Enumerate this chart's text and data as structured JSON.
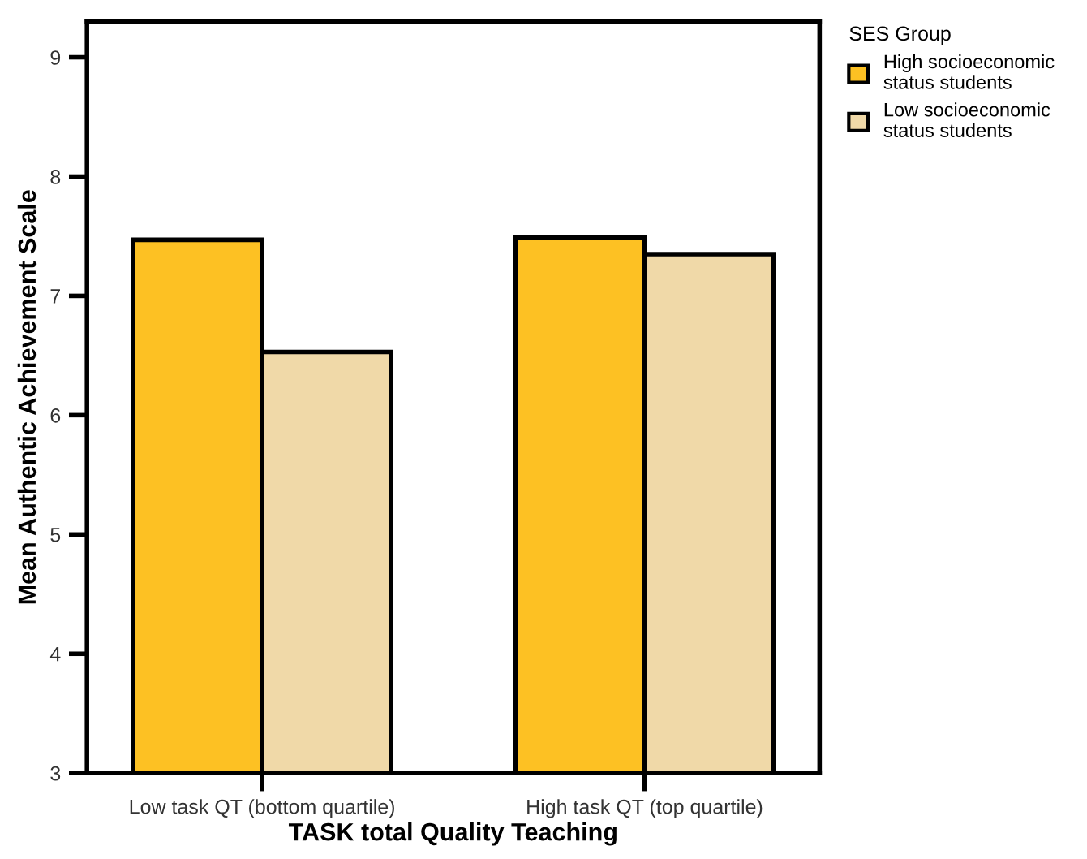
{
  "chart_data": {
    "type": "bar",
    "xlabel": "TASK total Quality Teaching",
    "ylabel": "Mean Authentic Achievement Scale",
    "legend_title": "SES Group",
    "legend": "top right",
    "categories": [
      "Low task QT (bottom quartile)",
      "High task QT (top quartile)"
    ],
    "series": [
      {
        "name": "High socioeconomic\nstatus students",
        "color": "#fdc123",
        "values": [
          7.47,
          7.49
        ]
      },
      {
        "name": "Low socioeconomic\nstatus students",
        "color": "#f0d9a8",
        "values": [
          6.53,
          7.35
        ]
      }
    ],
    "ylim": [
      3,
      9.3
    ],
    "yticks": [
      3,
      4,
      5,
      6,
      7,
      8,
      9
    ],
    "grid": false
  }
}
